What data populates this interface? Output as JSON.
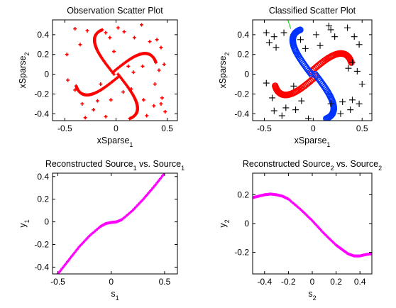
{
  "window": {
    "background": "#ffffff"
  },
  "chart_data": [
    {
      "type": "scatter",
      "title": "Observation Scatter Plot",
      "xlabel": "xSparse",
      "xlabel_sub": "1",
      "ylabel": "xSparse",
      "ylabel_sub": "2",
      "xlim": [
        -0.62,
        0.6
      ],
      "ylim": [
        -0.47,
        0.55
      ],
      "xticks": [
        -0.5,
        0,
        0.5
      ],
      "xtick_labels": [
        "-0.5",
        "0",
        "0.5"
      ],
      "yticks": [
        -0.4,
        -0.2,
        0,
        0.2,
        0.4
      ],
      "ytick_labels": [
        "-0.4",
        "-0.2",
        "0",
        "0.2",
        "0.4"
      ],
      "grid": false,
      "series": [
        {
          "marker": "plus",
          "color": "#ff0000",
          "points": [
            [
              -0.48,
              0.2
            ],
            [
              -0.4,
              0.46
            ],
            [
              -0.35,
              0.3
            ],
            [
              -0.28,
              0.44
            ],
            [
              -0.1,
              0.42
            ],
            [
              -0.06,
              0.37
            ],
            [
              0.02,
              0.47
            ],
            [
              0.08,
              0.43
            ],
            [
              0.18,
              0.37
            ],
            [
              0.25,
              0.5
            ],
            [
              0.33,
              0.33
            ],
            [
              0.4,
              0.35
            ],
            [
              0.44,
              0.27
            ],
            [
              0.47,
              0.1
            ],
            [
              0.42,
              0.04
            ],
            [
              0.38,
              -0.1
            ],
            [
              0.45,
              -0.24
            ],
            [
              0.44,
              -0.3
            ],
            [
              0.48,
              -0.38
            ],
            [
              0.37,
              -0.32
            ],
            [
              0.3,
              -0.42
            ],
            [
              -0.05,
              -0.26
            ],
            [
              -0.18,
              -0.27
            ],
            [
              -0.22,
              -0.36
            ],
            [
              -0.33,
              -0.3
            ],
            [
              -0.3,
              -0.44
            ],
            [
              -0.1,
              -0.43
            ],
            [
              -0.4,
              -0.16
            ],
            [
              -0.47,
              -0.06
            ],
            [
              -0.15,
              -0.1
            ],
            [
              0.07,
              -0.18
            ],
            [
              0.15,
              -0.15
            ],
            [
              0.27,
              -0.26
            ],
            [
              0.12,
              0.08
            ],
            [
              0.26,
              0.08
            ],
            [
              0.17,
              0.02
            ],
            [
              -0.02,
              0.23
            ]
          ]
        }
      ]
    },
    {
      "type": "scatter",
      "title": "Classified Scatter Plot",
      "xlabel": "xSparse",
      "xlabel_sub": "1",
      "ylabel": "xSparse",
      "ylabel_sub": "2",
      "xlim": [
        -0.62,
        0.6
      ],
      "ylim": [
        -0.47,
        0.55
      ],
      "xticks": [
        -0.5,
        0,
        0.5
      ],
      "xtick_labels": [
        "-0.5",
        "0",
        "0.5"
      ],
      "yticks": [
        -0.4,
        -0.2,
        0,
        0.2,
        0.4
      ],
      "ytick_labels": [
        "-0.4",
        "-0.2",
        "0",
        "0.2",
        "0.4"
      ],
      "grid": false,
      "series": [
        {
          "marker": "plus",
          "color": "#000000",
          "points": [
            [
              -0.48,
              0.42
            ],
            [
              -0.45,
              0.32
            ],
            [
              -0.4,
              0.38
            ],
            [
              -0.38,
              0.27
            ],
            [
              -0.3,
              0.42
            ],
            [
              -0.13,
              0.35
            ],
            [
              -0.08,
              0.26
            ],
            [
              0.03,
              0.4
            ],
            [
              0.07,
              0.29
            ],
            [
              0.16,
              0.49
            ],
            [
              0.18,
              0.45
            ],
            [
              0.22,
              0.38
            ],
            [
              0.35,
              0.47
            ],
            [
              0.42,
              0.38
            ],
            [
              0.47,
              0.3
            ],
            [
              0.4,
              0.12
            ],
            [
              0.36,
              0.06
            ],
            [
              0.45,
              0.03
            ],
            [
              0.5,
              -0.1
            ],
            [
              0.4,
              -0.26
            ],
            [
              0.47,
              -0.3
            ],
            [
              0.38,
              -0.36
            ],
            [
              0.28,
              -0.4
            ],
            [
              0.3,
              -0.28
            ],
            [
              0.18,
              -0.3
            ],
            [
              -0.12,
              -0.27
            ],
            [
              -0.18,
              -0.36
            ],
            [
              -0.28,
              -0.34
            ],
            [
              -0.32,
              -0.42
            ],
            [
              -0.42,
              -0.24
            ],
            [
              -0.48,
              -0.09
            ],
            [
              -0.4,
              -0.37
            ],
            [
              -0.05,
              -0.45
            ],
            [
              -0.2,
              -0.12
            ]
          ]
        }
      ]
    },
    {
      "type": "line",
      "title": "Reconstructed Source",
      "title_sub": "1",
      "title_suffix": " vs. Source",
      "title_suffix_sub": "1",
      "xlabel": "s",
      "xlabel_sub": "1",
      "ylabel": "y",
      "ylabel_sub": "1",
      "xlim": [
        -0.55,
        0.62
      ],
      "ylim": [
        -0.46,
        0.43
      ],
      "xticks": [
        -0.5,
        0,
        0.5
      ],
      "xtick_labels": [
        "-0.5",
        "0",
        "0.5"
      ],
      "yticks": [
        -0.4,
        -0.2,
        0,
        0.2,
        0.4
      ],
      "ytick_labels": [
        "-0.4",
        "-0.2",
        "0",
        "0.2",
        "0.4"
      ],
      "grid": false,
      "series": [
        {
          "color": "#ff00ff",
          "x": [
            -0.5,
            -0.4,
            -0.3,
            -0.2,
            -0.1,
            -0.05,
            0.0,
            0.05,
            0.1,
            0.2,
            0.3,
            0.4,
            0.5
          ],
          "y": [
            -0.46,
            -0.34,
            -0.22,
            -0.12,
            -0.04,
            -0.015,
            -0.005,
            0.0,
            0.02,
            0.1,
            0.2,
            0.31,
            0.43
          ]
        }
      ]
    },
    {
      "type": "line",
      "title": "Reconstructed Source",
      "title_sub": "2",
      "title_suffix": " vs. Source",
      "title_suffix_sub": "2",
      "xlabel": "s",
      "xlabel_sub": "2",
      "ylabel": "y",
      "ylabel_sub": "2",
      "xlim": [
        -0.5,
        0.5
      ],
      "ylim": [
        -0.35,
        0.35
      ],
      "xticks": [
        -0.4,
        -0.2,
        0,
        0.2,
        0.4
      ],
      "xtick_labels": [
        "-0.4",
        "-0.2",
        "0",
        "0.2",
        "0.4"
      ],
      "yticks": [
        -0.2,
        0,
        0.2
      ],
      "ytick_labels": [
        "-0.2",
        "0",
        "0.2"
      ],
      "grid": false,
      "series": [
        {
          "color": "#ff00ff",
          "x": [
            -0.5,
            -0.45,
            -0.4,
            -0.35,
            -0.3,
            -0.25,
            -0.2,
            -0.1,
            0.0,
            0.1,
            0.2,
            0.25,
            0.3,
            0.35,
            0.4,
            0.45,
            0.5
          ],
          "y": [
            0.18,
            0.19,
            0.2,
            0.205,
            0.2,
            0.19,
            0.17,
            0.1,
            0.02,
            -0.07,
            -0.15,
            -0.18,
            -0.21,
            -0.225,
            -0.225,
            -0.215,
            -0.21
          ]
        }
      ]
    }
  ]
}
